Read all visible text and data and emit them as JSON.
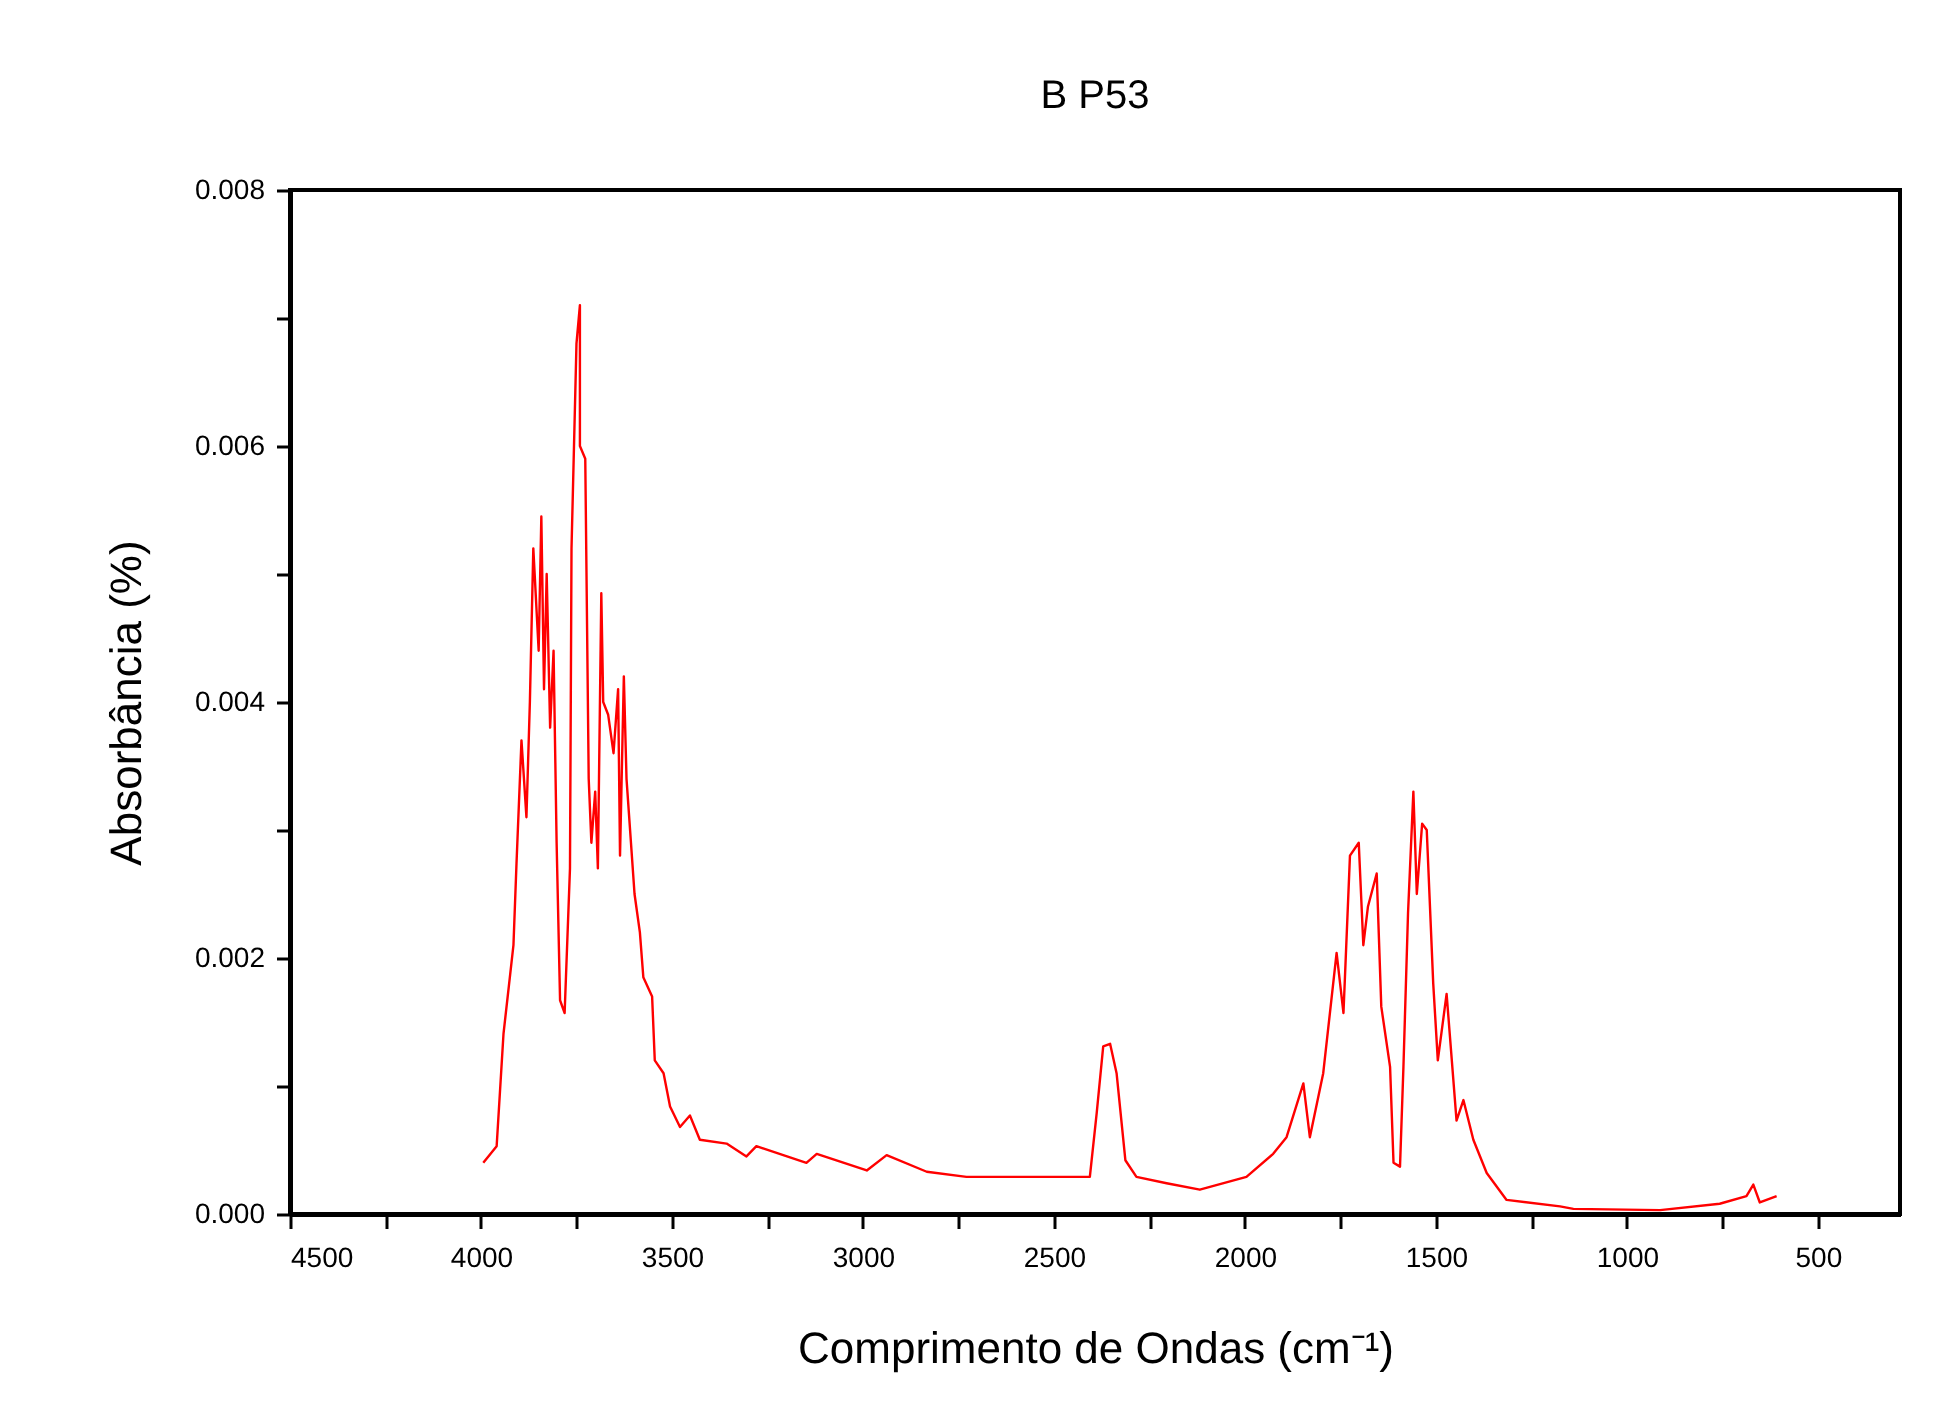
{
  "chart_data": {
    "type": "line",
    "title": "B P53",
    "xlabel": "Comprimento de Ondas (cm⁻¹)",
    "ylabel": "Absorbância (%)",
    "xlim": [
      4500,
      285
    ],
    "ylim": [
      0,
      0.008
    ],
    "xticks": [
      4500,
      {
        "value": 4250,
        "label": null
      },
      4000,
      {
        "value": 3750,
        "label": null
      },
      3500,
      {
        "value": 3250,
        "label": null
      },
      3000,
      {
        "value": 2750,
        "label": null
      },
      2500,
      {
        "value": 2250,
        "label": null
      },
      2000,
      {
        "value": 1750,
        "label": null
      },
      1500,
      {
        "value": 1250,
        "label": null
      },
      1000,
      {
        "value": 750,
        "label": null
      },
      500
    ],
    "yticks": [
      {
        "value": 0,
        "label": "0.000"
      },
      {
        "value": 0.001,
        "label": null
      },
      0.002,
      {
        "value": 0.003,
        "label": null
      },
      0.004,
      {
        "value": 0.005,
        "label": null
      },
      0.006,
      {
        "value": 0.007,
        "label": null
      },
      0.008
    ],
    "grid": false,
    "series": [
      {
        "color": "#ff0000",
        "x": [
          3994,
          3959,
          3941,
          3915,
          3907,
          3894,
          3881,
          3872,
          3863,
          3849,
          3842,
          3835,
          3828,
          3819,
          3810,
          3802,
          3793,
          3781,
          3767,
          3763,
          3750,
          3741,
          3741,
          3727,
          3718,
          3711,
          3701,
          3694,
          3685,
          3680,
          3667,
          3653,
          3641,
          3636,
          3626,
          3619,
          3598,
          3584,
          3575,
          3552,
          3545,
          3522,
          3505,
          3479,
          3453,
          3427,
          3357,
          3305,
          3279,
          3148,
          3121,
          2990,
          2938,
          2833,
          2729,
          2624,
          2406,
          2388,
          2371,
          2353,
          2336,
          2313,
          2284,
          2205,
          2118,
          1996,
          1926,
          1891,
          1847,
          1830,
          1795,
          1760,
          1742,
          1725,
          1702,
          1690,
          1678,
          1655,
          1643,
          1620,
          1611,
          1594,
          1585,
          1573,
          1559,
          1550,
          1536,
          1524,
          1507,
          1495,
          1472,
          1446,
          1428,
          1402,
          1367,
          1315,
          1175,
          1140,
          913,
          757,
          687,
          669,
          652,
          608
        ],
        "values": [
          0.0004,
          0.00053,
          0.00141,
          0.0021,
          0.00274,
          0.0037,
          0.0031,
          0.004,
          0.0052,
          0.0044,
          0.00545,
          0.0041,
          0.005,
          0.0038,
          0.0044,
          0.0029,
          0.00167,
          0.00157,
          0.0027,
          0.0052,
          0.0068,
          0.0071,
          0.006,
          0.0059,
          0.0034,
          0.0029,
          0.0033,
          0.0027,
          0.00485,
          0.004,
          0.0039,
          0.0036,
          0.0041,
          0.0028,
          0.0042,
          0.0034,
          0.0025,
          0.0022,
          0.00185,
          0.0017,
          0.0012,
          0.0011,
          0.00084,
          0.00068,
          0.00077,
          0.00058,
          0.00055,
          0.00045,
          0.00053,
          0.0004,
          0.00047,
          0.00034,
          0.00046,
          0.00033,
          0.00029,
          0.00029,
          0.00029,
          0.00079,
          0.00131,
          0.00133,
          0.0011,
          0.00042,
          0.00029,
          0.00024,
          0.00019,
          0.00029,
          0.00047,
          0.0006,
          0.00102,
          0.0006,
          0.0011,
          0.00204,
          0.00157,
          0.0028,
          0.0029,
          0.0021,
          0.0024,
          0.00266,
          0.00162,
          0.00115,
          0.0004,
          0.00037,
          0.00115,
          0.00235,
          0.0033,
          0.0025,
          0.00305,
          0.003,
          0.0018,
          0.0012,
          0.00172,
          0.00073,
          0.00089,
          0.00058,
          0.00032,
          0.00011,
          6e-05,
          4e-05,
          3e-05,
          8e-05,
          0.00014,
          0.00023,
          9e-05,
          0.00014
        ]
      }
    ]
  }
}
